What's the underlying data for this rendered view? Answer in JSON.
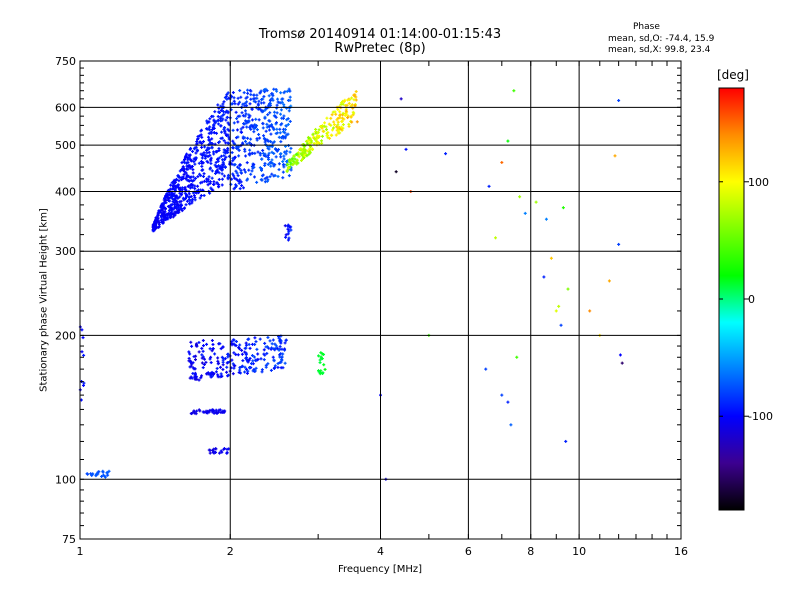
{
  "header": {
    "title_line1": "Tromsø 20140914 01:14:00-01:15:43",
    "title_line2": "RwPretec (8p)",
    "phase_heading": "Phase",
    "phase_stats_o": "mean, sd,O: -74.4, 15.9",
    "phase_stats_x": "mean, sd,X:  99.8, 23.4"
  },
  "chart_data": {
    "type": "scatter",
    "title": "Tromsø 20140914 01:14:00-01:15:43",
    "subtitle": "RwPretec (8p)",
    "xlabel": "Frequency [MHz]",
    "ylabel": "Stationary phase Virtual Height [km]",
    "x_scale": "log",
    "y_scale": "log",
    "xlim": [
      1,
      16
    ],
    "ylim": [
      75,
      750
    ],
    "x_ticks": [
      1,
      2,
      4,
      6,
      8,
      10,
      16
    ],
    "x_tick_labels": [
      "1",
      "2",
      "4",
      "6",
      "8",
      "10",
      "16"
    ],
    "y_ticks": [
      75,
      100,
      200,
      300,
      400,
      500,
      600,
      750
    ],
    "y_tick_labels": [
      "75",
      "100",
      "200",
      "300",
      "400",
      "500",
      "600",
      "750"
    ],
    "grid": true,
    "colorbar": {
      "label": "[deg]",
      "range": [
        -180,
        180
      ],
      "ticks": [
        100,
        0,
        -100
      ],
      "tick_labels": [
        "100",
        "0",
        "-100"
      ]
    },
    "series": [
      {
        "type": "band",
        "f_range": [
          1.4,
          2.0
        ],
        "h_lo": [
          330,
          420
        ],
        "h_hi": [
          340,
          660
        ],
        "phase": [
          -110,
          -85
        ],
        "n": 650
      },
      {
        "type": "band",
        "f_range": [
          2.0,
          2.65
        ],
        "h_lo": [
          400,
          430
        ],
        "h_hi": [
          650,
          660
        ],
        "phase": [
          -100,
          -60
        ],
        "n": 420
      },
      {
        "type": "band",
        "f_range": [
          2.6,
          3.6
        ],
        "h_lo": [
          440,
          560
        ],
        "h_hi": [
          460,
          660
        ],
        "phase": [
          40,
          140
        ],
        "n": 230
      },
      {
        "type": "band",
        "f_range": [
          1.65,
          2.6
        ],
        "h_lo": [
          160,
          170
        ],
        "h_hi": [
          195,
          200
        ],
        "phase": [
          -120,
          -70
        ],
        "n": 260
      },
      {
        "type": "band",
        "f_range": [
          1.65,
          1.95
        ],
        "h_lo": [
          137,
          137
        ],
        "h_hi": [
          140,
          140
        ],
        "phase": [
          -115,
          -100
        ],
        "n": 40
      },
      {
        "type": "band",
        "f_range": [
          1.8,
          2.0
        ],
        "h_lo": [
          113,
          113
        ],
        "h_hi": [
          116,
          116
        ],
        "phase": [
          -115,
          -100
        ],
        "n": 20
      },
      {
        "type": "band",
        "f_range": [
          1.0,
          1.15
        ],
        "h_lo": [
          101,
          101
        ],
        "h_hi": [
          104,
          104
        ],
        "phase": [
          -80,
          -70
        ],
        "n": 22
      },
      {
        "type": "band",
        "f_range": [
          2.57,
          2.65
        ],
        "h_lo": [
          315,
          315
        ],
        "h_hi": [
          345,
          345
        ],
        "phase": [
          -110,
          -80
        ],
        "n": 15
      },
      {
        "type": "band",
        "f_range": [
          3.0,
          3.1
        ],
        "h_lo": [
          165,
          165
        ],
        "h_hi": [
          185,
          185
        ],
        "phase": [
          5,
          20
        ],
        "n": 18
      },
      {
        "type": "band",
        "f_range": [
          1.0,
          1.02
        ],
        "h_lo": [
          145,
          145
        ],
        "h_hi": [
          220,
          220
        ],
        "phase": [
          -110,
          -90
        ],
        "n": 10
      },
      {
        "type": "points",
        "x": [
          4.0,
          4.1,
          4.5,
          4.6,
          5.0,
          5.4,
          6.6,
          6.8,
          7.0,
          7.2,
          7.3,
          7.5,
          7.6,
          7.8,
          8.2,
          8.8,
          9.0,
          9.1,
          9.3,
          9.5,
          10.5,
          11.0,
          11.5,
          12.0,
          12.1,
          12.2,
          4.3,
          4.4,
          6.5,
          7.4,
          8.5,
          8.6,
          9.2,
          9.4,
          11.8,
          12.0,
          7.0,
          7.2
        ],
        "y": [
          150,
          100,
          490,
          400,
          200,
          480,
          410,
          320,
          150,
          145,
          130,
          180,
          390,
          360,
          380,
          290,
          225,
          230,
          370,
          250,
          225,
          200,
          260,
          310,
          182,
          175,
          440,
          625,
          170,
          650,
          265,
          350,
          210,
          120,
          475,
          620,
          460,
          510
        ],
        "phase": [
          -100,
          -110,
          -95,
          160,
          40,
          -90,
          -90,
          80,
          -80,
          -90,
          -70,
          40,
          70,
          -60,
          70,
          120,
          90,
          80,
          30,
          60,
          140,
          110,
          130,
          -80,
          -100,
          -150,
          -170,
          -120,
          -80,
          40,
          -90,
          -60,
          -80,
          -90,
          130,
          -80,
          150,
          20
        ]
      }
    ]
  },
  "colors": {
    "background": "#ffffff",
    "frame": "#000000",
    "colormap_from_180_to_-180": [
      "#ff0000",
      "#ff8c00",
      "#ffff00",
      "#7fff00",
      "#00ff00",
      "#00ffff",
      "#0080ff",
      "#0000ff",
      "#3c0090",
      "#000000"
    ]
  }
}
